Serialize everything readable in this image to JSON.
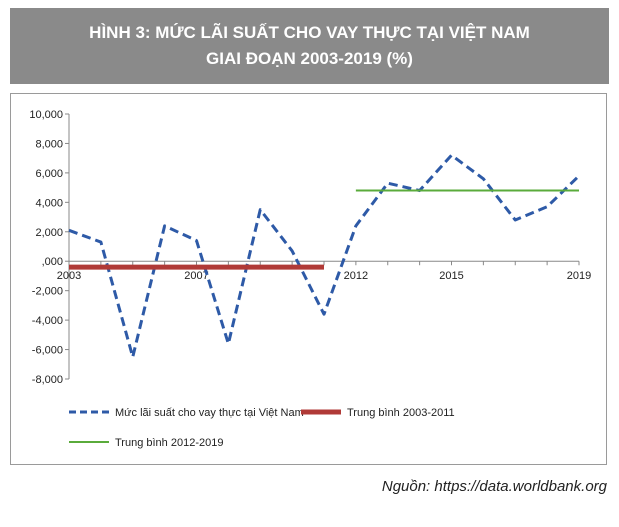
{
  "title_line1": "HÌNH 3: MỨC LÃI SUẤT CHO VAY THỰC TẠI VIỆT NAM",
  "title_line2": "GIAI ĐOẠN 2003-2019 (%)",
  "source": "Nguồn: https://data.worldbank.org",
  "chart_data": {
    "type": "line",
    "title": "HÌNH 3: MỨC LÃI SUẤT CHO VAY THỰC TẠI VIỆT NAM GIAI ĐOẠN 2003-2019 (%)",
    "xlabel": "",
    "ylabel": "",
    "ylim": [
      -8000,
      10000
    ],
    "xlim": [
      2003,
      2019
    ],
    "y_ticks": [
      10000,
      8000,
      6000,
      4000,
      2000,
      0,
      -2000,
      -4000,
      -6000,
      -8000
    ],
    "y_tick_labels": [
      "10,000",
      "8,000",
      "6,000",
      "4,000",
      "2,000",
      ",000",
      "-2,000",
      "-4,000",
      "-6,000",
      "-8,000"
    ],
    "x_ticks": [
      2003,
      2007,
      2012,
      2015,
      2019
    ],
    "x_tick_labels": [
      "2003",
      "2007",
      "2012",
      "2015",
      "2019"
    ],
    "grid": false,
    "legend_position": "bottom",
    "x": [
      2003,
      2004,
      2005,
      2006,
      2007,
      2008,
      2009,
      2010,
      2011,
      2012,
      2013,
      2014,
      2015,
      2016,
      2017,
      2018,
      2019
    ],
    "series": [
      {
        "name": "Mức lãi suất cho vay thực tại Việt Nam",
        "style": "dashed",
        "color": "#2e5aa7",
        "values": [
          2100,
          1300,
          -6500,
          2400,
          1400,
          -5600,
          3500,
          700,
          -3600,
          2400,
          5300,
          4800,
          7200,
          5600,
          2800,
          3700,
          5800
        ]
      },
      {
        "name": "Trung bình 2003-2011",
        "style": "solid-thick",
        "color": "#b03a37",
        "x_range": [
          2003,
          2011
        ],
        "value": -400
      },
      {
        "name": "Trung bình 2012-2019",
        "style": "solid",
        "color": "#5aab3b",
        "x_range": [
          2012,
          2019
        ],
        "value": 4800
      }
    ]
  }
}
